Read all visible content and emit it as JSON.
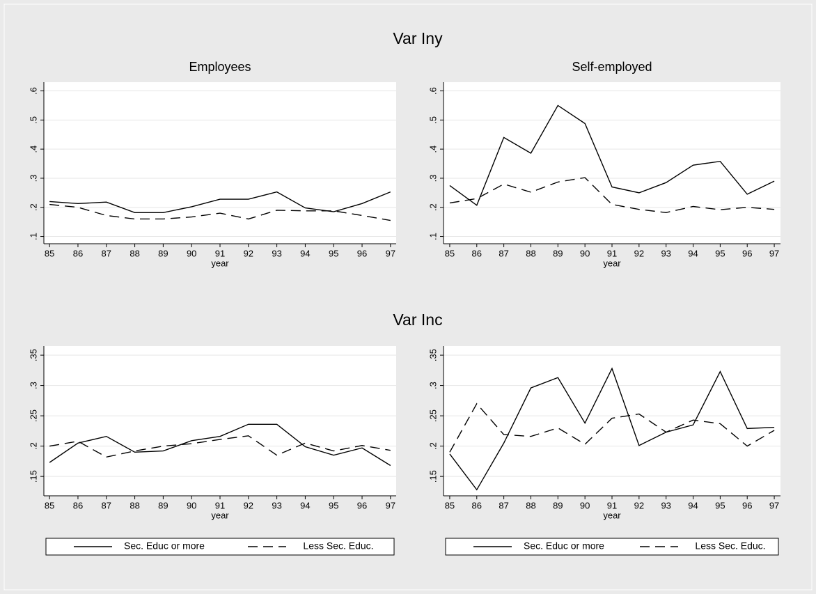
{
  "headings": [
    "Var Iny",
    "Var Inc"
  ],
  "chart_data": [
    {
      "type": "line",
      "title": "Employees",
      "x_label": "year",
      "x": [
        85,
        86,
        87,
        88,
        89,
        90,
        91,
        92,
        93,
        94,
        95,
        96,
        97
      ],
      "xlim": [
        84.8,
        97.2
      ],
      "xticks": [
        85,
        86,
        87,
        88,
        89,
        90,
        91,
        92,
        93,
        94,
        95,
        96,
        97
      ],
      "ylim": [
        0.075,
        0.63
      ],
      "yticks": [
        {
          "value": 0.1,
          "label": ".1"
        },
        {
          "value": 0.2,
          "label": ".2"
        },
        {
          "value": 0.3,
          "label": ".3"
        },
        {
          "value": 0.4,
          "label": ".4"
        },
        {
          "value": 0.5,
          "label": ".5"
        },
        {
          "value": 0.6,
          "label": ".6"
        }
      ],
      "grid": true,
      "series": [
        {
          "color": "#000000",
          "style": "solid",
          "values": [
            0.22,
            0.213,
            0.218,
            0.182,
            0.182,
            0.202,
            0.228,
            0.228,
            0.253,
            0.198,
            0.185,
            0.213,
            0.253
          ]
        },
        {
          "color": "#000000",
          "style": "dashed",
          "values": [
            0.21,
            0.2,
            0.172,
            0.16,
            0.16,
            0.167,
            0.18,
            0.16,
            0.19,
            0.188,
            0.188,
            0.172,
            0.155
          ]
        }
      ]
    },
    {
      "type": "line",
      "title": "Self-employed",
      "x_label": "year",
      "x": [
        85,
        86,
        87,
        88,
        89,
        90,
        91,
        92,
        93,
        94,
        95,
        96,
        97
      ],
      "xlim": [
        84.77,
        97.23
      ],
      "xticks": [
        85,
        86,
        87,
        88,
        89,
        90,
        91,
        92,
        93,
        94,
        95,
        96,
        97
      ],
      "ylim": [
        0.075,
        0.63
      ],
      "yticks": [
        {
          "value": 0.1,
          "label": ".1"
        },
        {
          "value": 0.2,
          "label": ".2"
        },
        {
          "value": 0.3,
          "label": ".3"
        },
        {
          "value": 0.4,
          "label": ".4"
        },
        {
          "value": 0.5,
          "label": ".5"
        },
        {
          "value": 0.6,
          "label": ".6"
        }
      ],
      "grid": true,
      "series": [
        {
          "color": "#000000",
          "style": "solid",
          "values": [
            0.275,
            0.207,
            0.44,
            0.386,
            0.55,
            0.488,
            0.27,
            0.25,
            0.285,
            0.345,
            0.358,
            0.245,
            0.29
          ]
        },
        {
          "color": "#000000",
          "style": "dashed",
          "values": [
            0.215,
            0.23,
            0.28,
            0.252,
            0.287,
            0.302,
            0.21,
            0.193,
            0.182,
            0.203,
            0.192,
            0.2,
            0.193
          ]
        }
      ]
    },
    {
      "type": "line",
      "x_label": "year",
      "x": [
        85,
        86,
        87,
        88,
        89,
        90,
        91,
        92,
        93,
        94,
        95,
        96,
        97
      ],
      "xlim": [
        84.8,
        97.2
      ],
      "xticks": [
        85,
        86,
        87,
        88,
        89,
        90,
        91,
        92,
        93,
        94,
        95,
        96,
        97
      ],
      "ylim": [
        0.118,
        0.365
      ],
      "yticks": [
        {
          "value": 0.15,
          "label": ".15"
        },
        {
          "value": 0.2,
          "label": ".2"
        },
        {
          "value": 0.25,
          "label": ".25"
        },
        {
          "value": 0.3,
          "label": ".3"
        },
        {
          "value": 0.35,
          "label": ".35"
        }
      ],
      "grid": true,
      "legend_position": "bottom",
      "series": [
        {
          "name": "Sec. Educ or more",
          "color": "#000000",
          "style": "solid",
          "values": [
            0.173,
            0.205,
            0.216,
            0.19,
            0.192,
            0.209,
            0.216,
            0.236,
            0.236,
            0.199,
            0.185,
            0.197,
            0.168
          ]
        },
        {
          "name": "Less Sec. Educ.",
          "color": "#000000",
          "style": "dashed",
          "values": [
            0.2,
            0.208,
            0.182,
            0.192,
            0.2,
            0.204,
            0.211,
            0.217,
            0.185,
            0.205,
            0.192,
            0.201,
            0.193
          ]
        }
      ]
    },
    {
      "type": "line",
      "x_label": "year",
      "x": [
        85,
        86,
        87,
        88,
        89,
        90,
        91,
        92,
        93,
        94,
        95,
        96,
        97
      ],
      "xlim": [
        84.77,
        97.23
      ],
      "xticks": [
        85,
        86,
        87,
        88,
        89,
        90,
        91,
        92,
        93,
        94,
        95,
        96,
        97
      ],
      "ylim": [
        0.118,
        0.365
      ],
      "yticks": [
        {
          "value": 0.15,
          "label": ".15"
        },
        {
          "value": 0.2,
          "label": ".2"
        },
        {
          "value": 0.25,
          "label": ".25"
        },
        {
          "value": 0.3,
          "label": ".3"
        },
        {
          "value": 0.35,
          "label": ".35"
        }
      ],
      "grid": true,
      "legend_position": "bottom",
      "series": [
        {
          "name": "Sec. Educ or more",
          "color": "#000000",
          "style": "solid",
          "values": [
            0.187,
            0.128,
            0.205,
            0.296,
            0.313,
            0.238,
            0.328,
            0.201,
            0.223,
            0.235,
            0.323,
            0.229,
            0.231
          ]
        },
        {
          "name": "Less Sec. Educ.",
          "color": "#000000",
          "style": "dashed",
          "values": [
            0.19,
            0.27,
            0.219,
            0.216,
            0.23,
            0.203,
            0.246,
            0.253,
            0.223,
            0.243,
            0.237,
            0.2,
            0.226
          ]
        }
      ]
    }
  ]
}
